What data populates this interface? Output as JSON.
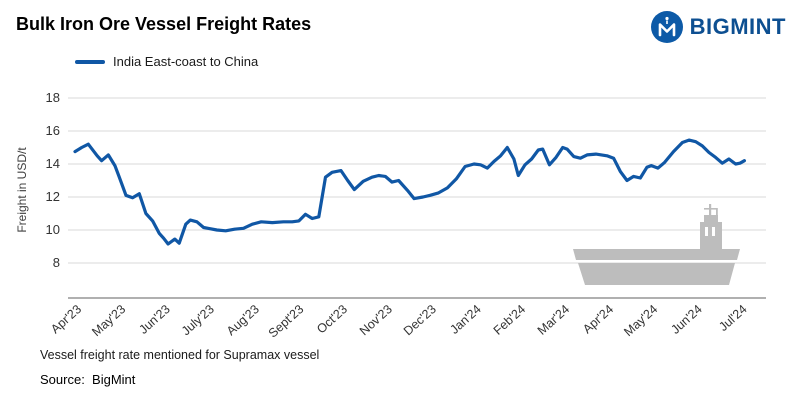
{
  "header": {
    "title": "Bulk Iron Ore Vessel Freight Rates",
    "brand": "BIGMINT"
  },
  "legend": {
    "series_label": "India East-coast to China"
  },
  "footer": {
    "note": "Vessel freight rate mentioned for Supramax vessel",
    "source": "Source:  BigMint"
  },
  "colors": {
    "line": "#1057a5",
    "grid": "#d9d9d9",
    "axis": "#808080",
    "ship": "#bdbdbd",
    "brand_text": "#0d4f91",
    "logo_circle": "#0d5aa7"
  },
  "chart_data": {
    "type": "line",
    "title": "Bulk Iron Ore Vessel Freight Rates",
    "xlabel": "",
    "ylabel": "Freight  in USD/t",
    "ylim": [
      8,
      18
    ],
    "yticks": [
      8,
      10,
      12,
      14,
      16,
      18
    ],
    "grid": "horizontal-only",
    "legend_position": "top-left",
    "x_tick_labels": [
      "Apr'23",
      "May'23",
      "Jun'23",
      "July'23",
      "Aug'23",
      "Sept'23",
      "Oct'23",
      "Nov'23",
      "Dec'23",
      "Jan'24",
      "Feb'24",
      "Mar'24",
      "Apr'24",
      "May'24",
      "Jun'24",
      "Jul'24"
    ],
    "series": [
      {
        "name": "India East-coast to China",
        "color": "#1057a5",
        "x_unit": "months offset from Apr'23 (0) to Jul'24 (15)",
        "points": [
          [
            0,
            14.75
          ],
          [
            0.15,
            15.0
          ],
          [
            0.3,
            15.2
          ],
          [
            0.5,
            14.5
          ],
          [
            0.6,
            14.2
          ],
          [
            0.75,
            14.55
          ],
          [
            0.9,
            13.9
          ],
          [
            1.0,
            13.2
          ],
          [
            1.15,
            12.1
          ],
          [
            1.3,
            11.95
          ],
          [
            1.45,
            12.2
          ],
          [
            1.6,
            11.0
          ],
          [
            1.75,
            10.55
          ],
          [
            1.9,
            9.8
          ],
          [
            2.0,
            9.5
          ],
          [
            2.1,
            9.15
          ],
          [
            2.25,
            9.45
          ],
          [
            2.35,
            9.2
          ],
          [
            2.5,
            10.35
          ],
          [
            2.6,
            10.6
          ],
          [
            2.75,
            10.5
          ],
          [
            2.9,
            10.15
          ],
          [
            3.0,
            10.1
          ],
          [
            3.2,
            10.0
          ],
          [
            3.4,
            9.95
          ],
          [
            3.6,
            10.05
          ],
          [
            3.8,
            10.1
          ],
          [
            4.0,
            10.35
          ],
          [
            4.2,
            10.5
          ],
          [
            4.45,
            10.45
          ],
          [
            4.7,
            10.5
          ],
          [
            4.9,
            10.5
          ],
          [
            5.05,
            10.55
          ],
          [
            5.2,
            10.95
          ],
          [
            5.35,
            10.7
          ],
          [
            5.5,
            10.8
          ],
          [
            5.65,
            13.2
          ],
          [
            5.8,
            13.5
          ],
          [
            6.0,
            13.6
          ],
          [
            6.15,
            13.0
          ],
          [
            6.3,
            12.45
          ],
          [
            6.5,
            12.95
          ],
          [
            6.7,
            13.2
          ],
          [
            6.85,
            13.3
          ],
          [
            7.0,
            13.25
          ],
          [
            7.15,
            12.9
          ],
          [
            7.3,
            13.0
          ],
          [
            7.5,
            12.4
          ],
          [
            7.65,
            11.9
          ],
          [
            7.85,
            12.0
          ],
          [
            8.0,
            12.1
          ],
          [
            8.2,
            12.25
          ],
          [
            8.4,
            12.55
          ],
          [
            8.6,
            13.1
          ],
          [
            8.8,
            13.85
          ],
          [
            9.0,
            14.0
          ],
          [
            9.15,
            13.95
          ],
          [
            9.3,
            13.75
          ],
          [
            9.45,
            14.15
          ],
          [
            9.6,
            14.5
          ],
          [
            9.75,
            15.0
          ],
          [
            9.9,
            14.3
          ],
          [
            10.0,
            13.3
          ],
          [
            10.15,
            13.95
          ],
          [
            10.3,
            14.3
          ],
          [
            10.45,
            14.85
          ],
          [
            10.55,
            14.9
          ],
          [
            10.7,
            13.95
          ],
          [
            10.85,
            14.4
          ],
          [
            11.0,
            15.0
          ],
          [
            11.1,
            14.9
          ],
          [
            11.25,
            14.45
          ],
          [
            11.4,
            14.35
          ],
          [
            11.55,
            14.55
          ],
          [
            11.75,
            14.6
          ],
          [
            12.0,
            14.5
          ],
          [
            12.15,
            14.35
          ],
          [
            12.3,
            13.55
          ],
          [
            12.45,
            13.0
          ],
          [
            12.6,
            13.25
          ],
          [
            12.75,
            13.15
          ],
          [
            12.9,
            13.8
          ],
          [
            13.0,
            13.9
          ],
          [
            13.15,
            13.75
          ],
          [
            13.3,
            14.1
          ],
          [
            13.5,
            14.75
          ],
          [
            13.7,
            15.3
          ],
          [
            13.85,
            15.45
          ],
          [
            14.0,
            15.35
          ],
          [
            14.15,
            15.1
          ],
          [
            14.3,
            14.7
          ],
          [
            14.45,
            14.4
          ],
          [
            14.6,
            14.05
          ],
          [
            14.75,
            14.3
          ],
          [
            14.9,
            14.0
          ],
          [
            15.0,
            14.05
          ],
          [
            15.1,
            14.2
          ]
        ]
      }
    ]
  }
}
